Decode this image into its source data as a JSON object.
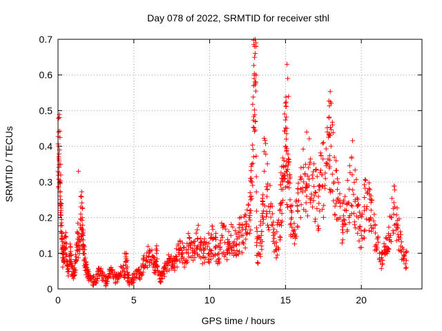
{
  "chart_data": {
    "type": "scatter",
    "title": "Day 078 of 2022, SRMTID for receiver sthl",
    "xlabel": "GPS time / hours",
    "ylabel": "SRMTID / TECUs",
    "xlim": [
      0,
      24
    ],
    "ylim": [
      0,
      0.7
    ],
    "xticks": [
      0,
      5,
      10,
      15,
      20
    ],
    "xtick_labels": [
      "0",
      "5",
      "10",
      "15",
      "20"
    ],
    "yticks": [
      0,
      0.1,
      0.2,
      0.3,
      0.4,
      0.5,
      0.6,
      0.7
    ],
    "ytick_labels": [
      "0",
      "0.1",
      "0.2",
      "0.3",
      "0.4",
      "0.5",
      "0.6",
      "0.7"
    ],
    "grid": true,
    "marker": "+",
    "color": "#ff0000",
    "series": [
      {
        "name": "SRMTID",
        "x": [
          0.0,
          0.05,
          0.1,
          0.15,
          0.2,
          0.25,
          0.3,
          0.35,
          0.4,
          0.5,
          0.6,
          0.7,
          0.8,
          0.9,
          1.0,
          1.1,
          1.2,
          1.3,
          1.4,
          1.5,
          1.6,
          1.65,
          1.7,
          1.8,
          1.9,
          2.0,
          2.2,
          2.4,
          2.6,
          2.8,
          3.0,
          3.2,
          3.4,
          3.6,
          3.8,
          4.0,
          4.2,
          4.4,
          4.5,
          4.6,
          4.8,
          5.0,
          5.2,
          5.4,
          5.6,
          5.8,
          6.0,
          6.2,
          6.4,
          6.5,
          6.6,
          6.8,
          7.0,
          7.2,
          7.4,
          7.6,
          7.8,
          8.0,
          8.2,
          8.4,
          8.6,
          8.8,
          9.0,
          9.2,
          9.4,
          9.6,
          9.8,
          10.0,
          10.2,
          10.4,
          10.6,
          10.8,
          11.0,
          11.2,
          11.4,
          11.6,
          11.8,
          12.0,
          12.2,
          12.4,
          12.6,
          12.7,
          12.8,
          12.9,
          12.95,
          13.0,
          13.05,
          13.1,
          13.2,
          13.4,
          13.5,
          13.6,
          13.8,
          14.0,
          14.2,
          14.4,
          14.6,
          14.7,
          14.8,
          14.9,
          15.0,
          15.05,
          15.1,
          15.2,
          15.3,
          15.4,
          15.6,
          15.8,
          16.0,
          16.2,
          16.4,
          16.6,
          16.8,
          17.0,
          17.2,
          17.4,
          17.6,
          17.8,
          17.9,
          18.0,
          18.2,
          18.4,
          18.6,
          18.8,
          19.0,
          19.2,
          19.4,
          19.6,
          19.8,
          20.0,
          20.2,
          20.4,
          20.6,
          20.8,
          21.0,
          21.2,
          21.4,
          21.6,
          21.8,
          22.0,
          22.2,
          22.4,
          22.6,
          22.8
        ],
        "y": [
          0.33,
          0.37,
          0.39,
          0.3,
          0.22,
          0.14,
          0.1,
          0.08,
          0.11,
          0.13,
          0.07,
          0.05,
          0.1,
          0.06,
          0.04,
          0.05,
          0.09,
          0.14,
          0.12,
          0.21,
          0.2,
          0.15,
          0.1,
          0.07,
          0.05,
          0.04,
          0.03,
          0.02,
          0.04,
          0.05,
          0.03,
          0.02,
          0.05,
          0.04,
          0.03,
          0.03,
          0.06,
          0.04,
          0.1,
          0.03,
          0.02,
          0.03,
          0.05,
          0.04,
          0.07,
          0.08,
          0.1,
          0.09,
          0.06,
          0.1,
          0.04,
          0.03,
          0.05,
          0.07,
          0.08,
          0.06,
          0.09,
          0.11,
          0.1,
          0.08,
          0.12,
          0.13,
          0.1,
          0.14,
          0.12,
          0.1,
          0.13,
          0.11,
          0.14,
          0.12,
          0.1,
          0.15,
          0.13,
          0.11,
          0.15,
          0.12,
          0.14,
          0.16,
          0.15,
          0.18,
          0.2,
          0.25,
          0.3,
          0.57,
          0.68,
          0.66,
          0.6,
          0.13,
          0.1,
          0.15,
          0.2,
          0.33,
          0.28,
          0.23,
          0.15,
          0.12,
          0.18,
          0.24,
          0.3,
          0.36,
          0.4,
          0.42,
          0.33,
          0.3,
          0.25,
          0.2,
          0.15,
          0.22,
          0.28,
          0.3,
          0.26,
          0.35,
          0.31,
          0.27,
          0.24,
          0.32,
          0.29,
          0.35,
          0.43,
          0.4,
          0.3,
          0.25,
          0.2,
          0.18,
          0.22,
          0.28,
          0.32,
          0.25,
          0.2,
          0.15,
          0.22,
          0.27,
          0.2,
          0.17,
          0.12,
          0.1,
          0.08,
          0.12,
          0.15,
          0.2,
          0.23,
          0.17,
          0.12,
          0.08
        ],
        "outliers_x": [
          1.35,
          4.4,
          13.0,
          13.05,
          15.1,
          15.15,
          15.2,
          16.4,
          17.95,
          18.1
        ],
        "outliers_y": [
          0.33,
          0.1,
          0.7,
          0.68,
          0.63,
          0.59,
          0.54,
          0.44,
          0.43,
          0.46
        ]
      }
    ]
  }
}
